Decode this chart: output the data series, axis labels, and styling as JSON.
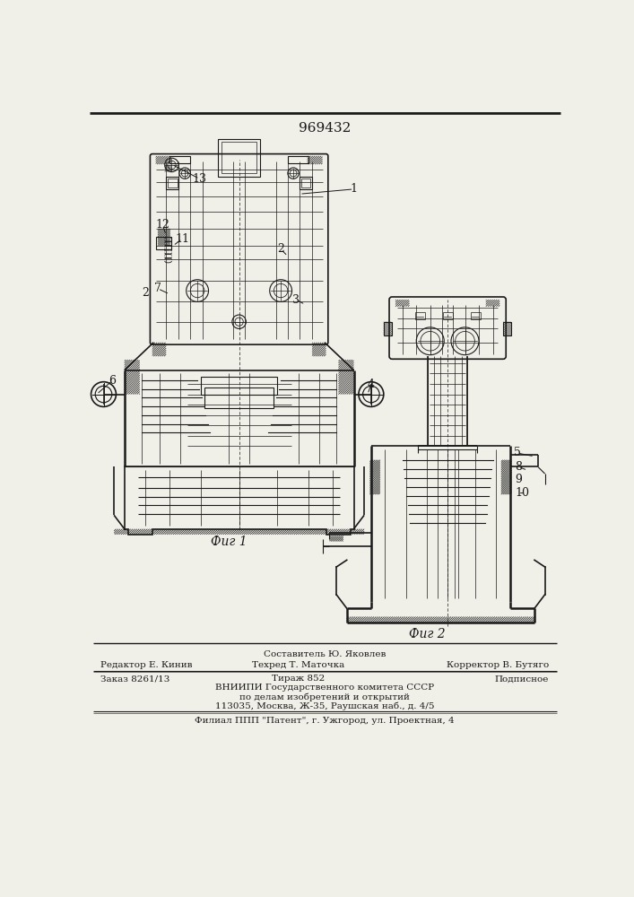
{
  "patent_number": "969432",
  "fig1_caption": "Фиг 1",
  "fig2_caption": "Фиг 2",
  "footer_line1_center": "Составитель Ю. Яковлев",
  "footer_line2_left": "Редактор Е. Кинив",
  "footer_line2_center": "Техред Т. Маточка",
  "footer_line2_right": "Корректор В. Бутяго",
  "footer_line3_left": "Заказ 8261/13",
  "footer_line3_center": "Тираж 852",
  "footer_line3_right": "Подписное",
  "footer_line4": "ВНИИПИ Государственного комитета СССР",
  "footer_line5": "по делам изобретений и открытий",
  "footer_line6": "113035, Москва, Ж-35, Раушская наб., д. 4/5",
  "footer_line7": "Филиал ППП \"Патент\", г. Ужгород, ул. Проектная, 4",
  "bg_color": "#f0efe8",
  "line_color": "#1a1a1a"
}
